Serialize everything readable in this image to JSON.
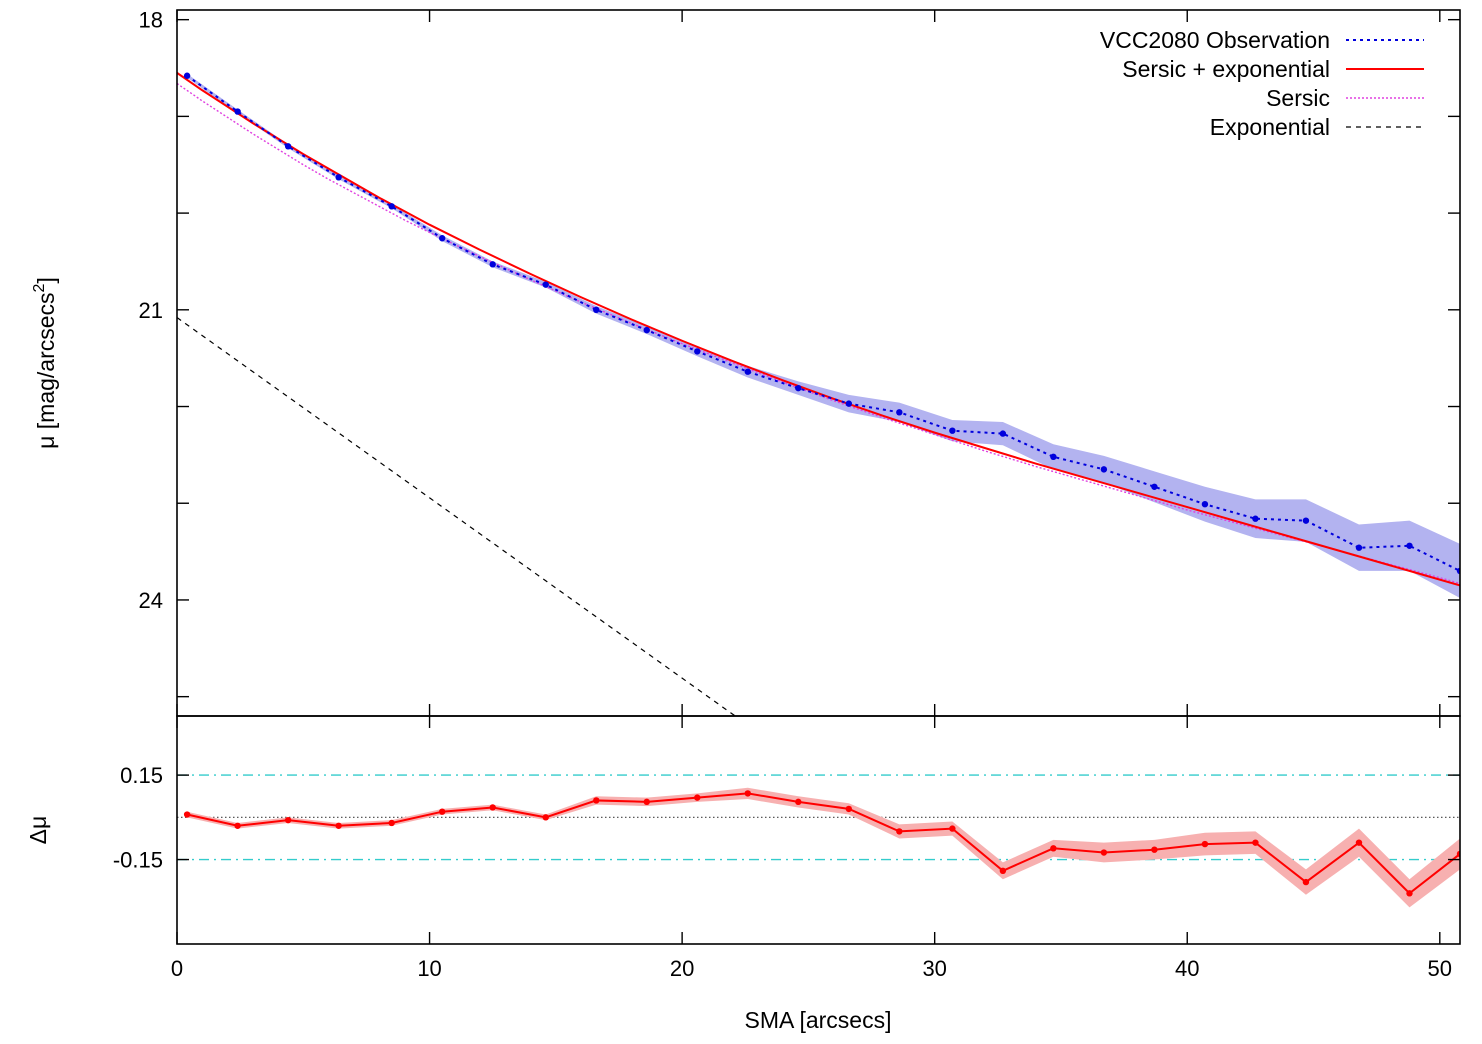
{
  "chart_data": [
    {
      "type": "line",
      "panel": "top",
      "ylabel": "μ [mag/arcsecs",
      "ylabel_sup": "2",
      "ylabel_close": "]",
      "xlim": [
        0,
        50.8
      ],
      "ylim": [
        25.2,
        17.9
      ],
      "y_inverted": true,
      "y_ticks": [
        18,
        19,
        20,
        21,
        22,
        23,
        24,
        25
      ],
      "y_tick_labels": [
        {
          "value": 18,
          "label": "18"
        },
        {
          "value": 21,
          "label": "21"
        },
        {
          "value": 24,
          "label": "24"
        }
      ],
      "legend_position": "top-right",
      "series": [
        {
          "name": "VCC2080 Observation",
          "style": "dotted-line-with-points",
          "color": "#0000dd",
          "band_color": "#b3b3f0",
          "x": [
            0.4,
            2.4,
            4.4,
            6.4,
            8.5,
            10.5,
            12.5,
            14.6,
            16.6,
            18.6,
            20.6,
            22.6,
            24.6,
            26.6,
            28.6,
            30.7,
            32.7,
            34.7,
            36.7,
            38.7,
            40.7,
            42.7,
            44.7,
            46.8,
            48.8,
            50.8
          ],
          "y": [
            18.58,
            18.95,
            19.31,
            19.63,
            19.93,
            20.26,
            20.53,
            20.74,
            21.0,
            21.21,
            21.43,
            21.64,
            21.81,
            21.97,
            22.06,
            22.25,
            22.28,
            22.52,
            22.65,
            22.83,
            23.01,
            23.16,
            23.18,
            23.46,
            23.44,
            23.7
          ],
          "err": [
            0.02,
            0.02,
            0.02,
            0.02,
            0.02,
            0.03,
            0.03,
            0.03,
            0.04,
            0.04,
            0.05,
            0.06,
            0.07,
            0.09,
            0.1,
            0.11,
            0.12,
            0.13,
            0.14,
            0.16,
            0.18,
            0.2,
            0.22,
            0.24,
            0.26,
            0.28
          ]
        },
        {
          "name": "Sersic + exponential",
          "style": "solid",
          "color": "#ff0000",
          "x": [
            0,
            1,
            2,
            3,
            4,
            5,
            6,
            7,
            8,
            9,
            10,
            12,
            14,
            16,
            18,
            20,
            22,
            24,
            26,
            28,
            30,
            32,
            34,
            36,
            38,
            40,
            42,
            44,
            46,
            48,
            50,
            50.8
          ],
          "y": [
            18.55,
            18.73,
            18.9,
            19.07,
            19.23,
            19.39,
            19.54,
            19.69,
            19.84,
            19.98,
            20.12,
            20.38,
            20.63,
            20.87,
            21.1,
            21.32,
            21.53,
            21.73,
            21.92,
            22.1,
            22.27,
            22.43,
            22.59,
            22.74,
            22.89,
            23.04,
            23.19,
            23.34,
            23.49,
            23.64,
            23.79,
            23.85
          ]
        },
        {
          "name": "Sersic",
          "style": "dotted",
          "color": "#e040e0",
          "x": [
            0,
            1,
            2,
            3,
            4,
            5,
            6,
            7,
            8,
            9,
            10,
            12,
            14,
            16,
            18,
            20,
            22,
            24,
            26,
            28,
            30,
            32,
            34,
            36,
            38,
            40,
            42,
            44,
            46,
            48,
            50,
            50.8
          ],
          "y": [
            18.66,
            18.84,
            19.01,
            19.18,
            19.34,
            19.5,
            19.65,
            19.79,
            19.93,
            20.07,
            20.2,
            20.45,
            20.69,
            20.92,
            21.14,
            21.35,
            21.55,
            21.75,
            21.94,
            22.12,
            22.29,
            22.46,
            22.62,
            22.77,
            22.92,
            23.07,
            23.21,
            23.35,
            23.49,
            23.63,
            23.77,
            23.83
          ]
        },
        {
          "name": "Exponential",
          "style": "dashed",
          "color": "#000000",
          "x": [
            0,
            22.1
          ],
          "y": [
            21.08,
            25.2
          ]
        }
      ]
    },
    {
      "type": "line",
      "panel": "bottom",
      "ylabel": "Δμ",
      "xlabel": "SMA [arcsecs]",
      "xlim": [
        0,
        50.8
      ],
      "ylim": [
        -0.45,
        0.36
      ],
      "x_ticks": [
        0,
        10,
        20,
        30,
        40,
        50
      ],
      "x_tick_labels": [
        "0",
        "10",
        "20",
        "30",
        "40",
        "50"
      ],
      "y_ticks": [
        0.15,
        -0.15
      ],
      "y_tick_labels": [
        "0.15",
        "-0.15"
      ],
      "reference_lines": [
        {
          "y": 0.15,
          "style": "dash-dot",
          "color": "#33cccc"
        },
        {
          "y": -0.15,
          "style": "dash-dot",
          "color": "#33cccc"
        },
        {
          "y": 0.0,
          "style": "dotted",
          "color": "#444444"
        }
      ],
      "series": [
        {
          "name": "",
          "style": "solid-with-points",
          "color": "#ff0000",
          "band_color": "#f7b0b0",
          "x": [
            0.4,
            2.4,
            4.4,
            6.4,
            8.5,
            10.5,
            12.5,
            14.6,
            16.6,
            18.6,
            20.6,
            22.6,
            24.6,
            26.6,
            28.6,
            30.7,
            32.7,
            34.7,
            36.7,
            38.7,
            40.7,
            42.7,
            44.7,
            46.8,
            48.8,
            50.8
          ],
          "y": [
            0.01,
            -0.03,
            -0.01,
            -0.03,
            -0.02,
            0.02,
            0.035,
            0.0,
            0.06,
            0.055,
            0.07,
            0.085,
            0.055,
            0.03,
            -0.05,
            -0.04,
            -0.19,
            -0.11,
            -0.125,
            -0.115,
            -0.095,
            -0.09,
            -0.23,
            -0.09,
            -0.27,
            -0.13
          ],
          "err": [
            0.01,
            0.01,
            0.01,
            0.01,
            0.01,
            0.01,
            0.01,
            0.01,
            0.015,
            0.015,
            0.015,
            0.02,
            0.02,
            0.02,
            0.025,
            0.025,
            0.03,
            0.03,
            0.035,
            0.035,
            0.04,
            0.04,
            0.045,
            0.05,
            0.05,
            0.055
          ]
        }
      ]
    }
  ]
}
